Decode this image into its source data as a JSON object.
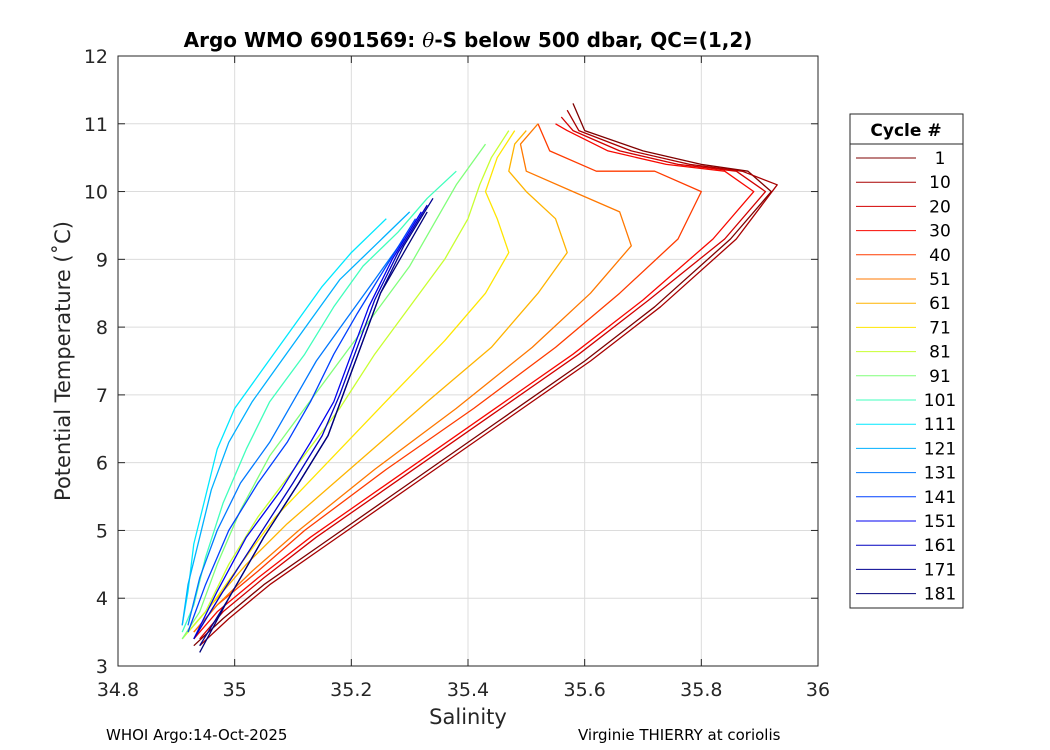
{
  "chart_data": {
    "type": "line",
    "title_prefix": "Argo WMO 6901569: ",
    "title_theta": "θ",
    "title_suffix": "-S below 500 dbar,  QC=(1,2)",
    "xlabel": "Salinity",
    "ylabel": "Potential Temperature (˚C)",
    "xlim": [
      34.8,
      36
    ],
    "ylim": [
      3,
      12
    ],
    "xticks": [
      34.8,
      35,
      35.2,
      35.4,
      35.6,
      35.8,
      36
    ],
    "xtick_labels": [
      "34.8",
      "35",
      "35.2",
      "35.4",
      "35.6",
      "35.8",
      "36"
    ],
    "yticks": [
      3,
      4,
      5,
      6,
      7,
      8,
      9,
      10,
      11,
      12
    ],
    "ytick_labels": [
      "3",
      "4",
      "5",
      "6",
      "7",
      "8",
      "9",
      "10",
      "11",
      "12"
    ],
    "grid": true,
    "legend": {
      "title": "Cycle #",
      "position": "outside-right",
      "entries": [
        {
          "label": "1",
          "color": "#7f0000"
        },
        {
          "label": "10",
          "color": "#a80000"
        },
        {
          "label": "20",
          "color": "#d20000"
        },
        {
          "label": "30",
          "color": "#f80800"
        },
        {
          "label": "40",
          "color": "#ff3c00"
        },
        {
          "label": "51",
          "color": "#ff7800"
        },
        {
          "label": "61",
          "color": "#ffb400"
        },
        {
          "label": "71",
          "color": "#ffe600"
        },
        {
          "label": "81",
          "color": "#c8ff30"
        },
        {
          "label": "91",
          "color": "#80ff7a"
        },
        {
          "label": "101",
          "color": "#40ffbc"
        },
        {
          "label": "111",
          "color": "#00e8ff"
        },
        {
          "label": "121",
          "color": "#00b0ff"
        },
        {
          "label": "131",
          "color": "#0078ff"
        },
        {
          "label": "141",
          "color": "#0040ff"
        },
        {
          "label": "151",
          "color": "#0000f0"
        },
        {
          "label": "161",
          "color": "#0000c0"
        },
        {
          "label": "171",
          "color": "#000090"
        },
        {
          "label": "181",
          "color": "#00007a"
        }
      ]
    },
    "series": [
      {
        "name": "1",
        "x": [
          34.93,
          34.98,
          35.05,
          35.15,
          35.3,
          35.45,
          35.6,
          35.72,
          35.85,
          35.92,
          35.88,
          35.8,
          35.7,
          35.6,
          35.58
        ],
        "y": [
          3.3,
          3.7,
          4.2,
          4.8,
          5.7,
          6.6,
          7.5,
          8.3,
          9.3,
          10.0,
          10.3,
          10.4,
          10.6,
          10.9,
          11.3
        ]
      },
      {
        "name": "10",
        "x": [
          34.94,
          34.99,
          35.06,
          35.16,
          35.31,
          35.46,
          35.61,
          35.73,
          35.86,
          35.93,
          35.87,
          35.78,
          35.68,
          35.59,
          35.57
        ],
        "y": [
          3.3,
          3.7,
          4.2,
          4.8,
          5.7,
          6.6,
          7.5,
          8.3,
          9.3,
          10.1,
          10.3,
          10.4,
          10.6,
          10.9,
          11.2
        ]
      },
      {
        "name": "20",
        "x": [
          34.94,
          34.98,
          35.05,
          35.14,
          35.29,
          35.44,
          35.59,
          35.71,
          35.84,
          35.91,
          35.86,
          35.76,
          35.66,
          35.58,
          35.56
        ],
        "y": [
          3.4,
          3.8,
          4.3,
          4.9,
          5.8,
          6.7,
          7.6,
          8.4,
          9.3,
          10.0,
          10.3,
          10.4,
          10.6,
          10.9,
          11.1
        ]
      },
      {
        "name": "30",
        "x": [
          34.93,
          34.97,
          35.04,
          35.13,
          35.28,
          35.43,
          35.58,
          35.7,
          35.82,
          35.89,
          35.84,
          35.74,
          35.64,
          35.57,
          35.55
        ],
        "y": [
          3.4,
          3.8,
          4.3,
          4.9,
          5.8,
          6.7,
          7.6,
          8.4,
          9.3,
          10.0,
          10.3,
          10.4,
          10.6,
          10.9,
          11.0
        ]
      },
      {
        "name": "40",
        "x": [
          34.93,
          34.97,
          35.04,
          35.12,
          35.26,
          35.41,
          35.55,
          35.66,
          35.76,
          35.8,
          35.72,
          35.62,
          35.54,
          35.52
        ],
        "y": [
          3.5,
          3.9,
          4.4,
          5.0,
          5.9,
          6.8,
          7.7,
          8.5,
          9.3,
          10.0,
          10.3,
          10.3,
          10.6,
          11.0
        ]
      },
      {
        "name": "51",
        "x": [
          34.93,
          34.97,
          35.03,
          35.11,
          35.24,
          35.38,
          35.51,
          35.61,
          35.68,
          35.66,
          35.58,
          35.5,
          35.49,
          35.52
        ],
        "y": [
          3.5,
          3.9,
          4.4,
          5.0,
          5.9,
          6.8,
          7.7,
          8.5,
          9.2,
          9.7,
          10.0,
          10.3,
          10.7,
          11.0
        ]
      },
      {
        "name": "61",
        "x": [
          34.92,
          34.96,
          35.02,
          35.09,
          35.21,
          35.33,
          35.44,
          35.52,
          35.57,
          35.55,
          35.5,
          35.47,
          35.48,
          35.5
        ],
        "y": [
          3.5,
          3.9,
          4.5,
          5.1,
          6.0,
          6.9,
          7.7,
          8.5,
          9.1,
          9.6,
          10.0,
          10.3,
          10.7,
          10.9
        ]
      },
      {
        "name": "71",
        "x": [
          34.92,
          34.96,
          35.01,
          35.07,
          35.17,
          35.27,
          35.36,
          35.43,
          35.47,
          35.45,
          35.43,
          35.45,
          35.48
        ],
        "y": [
          3.5,
          3.9,
          4.5,
          5.2,
          6.1,
          7.0,
          7.8,
          8.5,
          9.1,
          9.6,
          10.0,
          10.5,
          10.9
        ]
      },
      {
        "name": "81",
        "x": [
          34.91,
          34.95,
          34.99,
          35.04,
          35.11,
          35.18,
          35.24,
          35.3,
          35.36,
          35.4,
          35.42,
          35.44,
          35.47
        ],
        "y": [
          3.4,
          3.8,
          4.5,
          5.2,
          6.0,
          6.8,
          7.6,
          8.3,
          9.0,
          9.6,
          10.1,
          10.5,
          10.9
        ]
      },
      {
        "name": "91",
        "x": [
          34.91,
          34.94,
          34.97,
          35.01,
          35.06,
          35.12,
          35.18,
          35.24,
          35.3,
          35.34,
          35.38,
          35.43
        ],
        "y": [
          3.4,
          3.8,
          4.5,
          5.3,
          6.1,
          6.8,
          7.5,
          8.2,
          8.9,
          9.5,
          10.1,
          10.7
        ]
      },
      {
        "name": "101",
        "x": [
          34.91,
          34.93,
          34.95,
          34.98,
          35.02,
          35.06,
          35.12,
          35.17,
          35.22,
          35.28,
          35.33,
          35.38
        ],
        "y": [
          3.5,
          3.9,
          4.6,
          5.4,
          6.2,
          6.9,
          7.6,
          8.3,
          8.9,
          9.4,
          9.9,
          10.3
        ]
      },
      {
        "name": "111",
        "x": [
          34.91,
          34.92,
          34.93,
          34.95,
          34.97,
          35.0,
          35.05,
          35.1,
          35.15,
          35.2,
          35.26
        ],
        "y": [
          3.6,
          4.1,
          4.8,
          5.5,
          6.2,
          6.8,
          7.4,
          8.0,
          8.6,
          9.1,
          9.6
        ]
      },
      {
        "name": "121",
        "x": [
          34.91,
          34.92,
          34.94,
          34.96,
          34.99,
          35.03,
          35.08,
          35.13,
          35.18,
          35.24,
          35.3
        ],
        "y": [
          3.6,
          4.2,
          4.9,
          5.6,
          6.3,
          6.9,
          7.5,
          8.1,
          8.7,
          9.2,
          9.7
        ]
      },
      {
        "name": "131",
        "x": [
          34.92,
          34.94,
          34.97,
          35.01,
          35.06,
          35.1,
          35.14,
          35.19,
          35.24,
          35.29
        ],
        "y": [
          3.6,
          4.3,
          5.0,
          5.7,
          6.3,
          6.9,
          7.5,
          8.1,
          8.7,
          9.3
        ]
      },
      {
        "name": "141",
        "x": [
          34.92,
          34.95,
          34.99,
          35.04,
          35.09,
          35.13,
          35.17,
          35.21,
          35.26,
          35.31
        ],
        "y": [
          3.5,
          4.2,
          5.0,
          5.7,
          6.3,
          6.9,
          7.6,
          8.2,
          8.9,
          9.6
        ]
      },
      {
        "name": "151",
        "x": [
          34.93,
          34.97,
          35.02,
          35.08,
          35.13,
          35.17,
          35.2,
          35.23,
          35.27,
          35.32
        ],
        "y": [
          3.4,
          4.1,
          4.9,
          5.6,
          6.3,
          6.9,
          7.6,
          8.3,
          9.0,
          9.7
        ]
      },
      {
        "name": "161",
        "x": [
          34.93,
          34.98,
          35.04,
          35.1,
          35.15,
          35.18,
          35.21,
          35.24,
          35.28,
          35.33
        ],
        "y": [
          3.4,
          4.1,
          4.9,
          5.7,
          6.4,
          7.0,
          7.7,
          8.4,
          9.1,
          9.8
        ]
      },
      {
        "name": "171",
        "x": [
          34.94,
          34.99,
          35.05,
          35.11,
          35.16,
          35.19,
          35.22,
          35.25,
          35.29,
          35.34
        ],
        "y": [
          3.3,
          4.0,
          4.9,
          5.7,
          6.4,
          7.1,
          7.8,
          8.5,
          9.2,
          9.9
        ]
      },
      {
        "name": "181",
        "x": [
          34.94,
          34.99,
          35.05,
          35.11,
          35.16,
          35.19,
          35.22,
          35.25,
          35.29,
          35.33
        ],
        "y": [
          3.2,
          4.0,
          4.9,
          5.7,
          6.4,
          7.1,
          7.8,
          8.5,
          9.1,
          9.7
        ]
      }
    ]
  },
  "footer": {
    "left": "WHOI Argo:14-Oct-2025",
    "right": "Virginie THIERRY at coriolis"
  }
}
